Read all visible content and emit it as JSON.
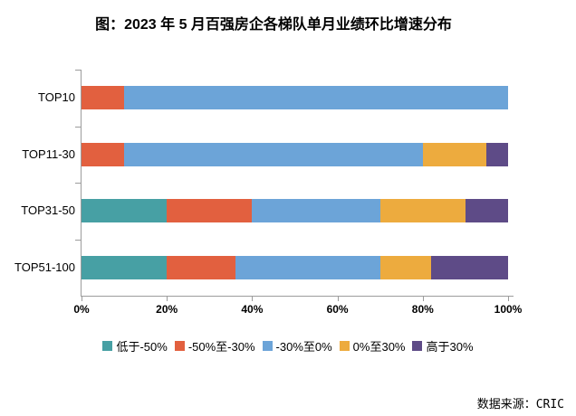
{
  "title": "图：2023 年 5 月百强房企各梯队单月业绩环比增速分布",
  "source": "数据来源：CRIC",
  "colors": {
    "axis": "#9c9c9c",
    "text": "#000000"
  },
  "chart_data": {
    "type": "bar",
    "orientation": "horizontal",
    "stacked": true,
    "unit": "%",
    "title": "图：2023 年 5 月百强房企各梯队单月业绩环比增速分布",
    "categories": [
      "TOP10",
      "TOP11-30",
      "TOP31-50",
      "TOP51-100"
    ],
    "series": [
      {
        "name": "低于-50%",
        "color": "#47A0A4",
        "values": [
          0,
          0,
          20,
          20
        ]
      },
      {
        "name": "-50%至-30%",
        "color": "#E2603F",
        "values": [
          10,
          10,
          20,
          16
        ]
      },
      {
        "name": "-30%至0%",
        "color": "#6CA4D8",
        "values": [
          90,
          70,
          30,
          34
        ]
      },
      {
        "name": "0%至30%",
        "color": "#EDAB3E",
        "values": [
          0,
          15,
          20,
          12
        ]
      },
      {
        "name": "高于30%",
        "color": "#5E4B87",
        "values": [
          0,
          5,
          10,
          18
        ]
      }
    ],
    "x_axis": {
      "tick_labels": [
        "0%",
        "20%",
        "40%",
        "60%",
        "80%",
        "100%"
      ],
      "range": [
        0,
        100
      ]
    },
    "legend_position": "bottom",
    "grid": false
  }
}
